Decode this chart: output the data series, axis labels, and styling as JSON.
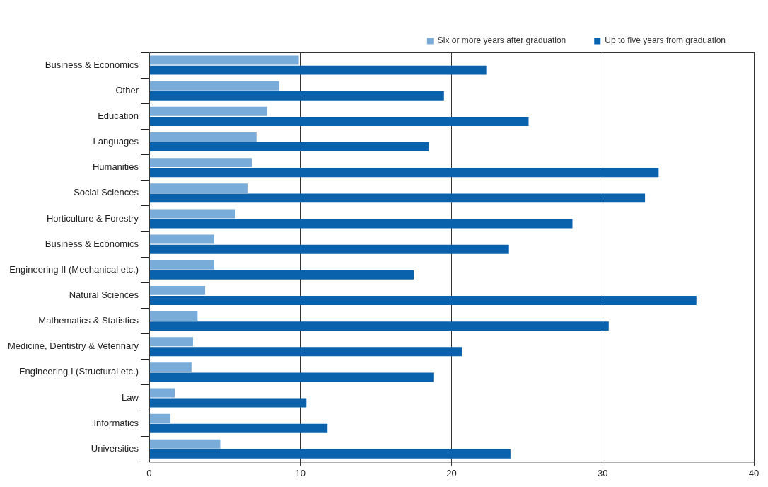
{
  "chart_data": {
    "type": "bar",
    "orientation": "horizontal",
    "categories": [
      "Business & Economics",
      "Other",
      "Education",
      "Languages",
      "Humanities",
      "Social Sciences",
      "Horticulture & Forestry",
      "Business & Economics",
      "Engineering II (Mechanical etc.)",
      "Natural Sciences",
      "Mathematics & Statistics",
      "Medicine, Dentistry & Veterinary",
      "Engineering I (Structural etc.)",
      "Law",
      "Informatics",
      "Universities"
    ],
    "series": [
      {
        "name": "Six or more years after graduation",
        "color": "#79acd9",
        "values": [
          9.9,
          8.6,
          7.8,
          7.1,
          6.8,
          6.5,
          5.7,
          4.3,
          4.3,
          3.7,
          3.2,
          2.9,
          2.8,
          1.7,
          1.4,
          4.7
        ]
      },
      {
        "name": "Up to five years from graduation",
        "color": "#0a62ad",
        "values": [
          22.3,
          19.5,
          25.1,
          18.5,
          33.7,
          32.8,
          28.0,
          23.8,
          17.5,
          36.2,
          30.4,
          20.7,
          18.8,
          10.4,
          11.8,
          23.9
        ]
      }
    ],
    "xlim": [
      0,
      40
    ],
    "xticks": [
      0,
      10,
      20,
      30,
      40
    ],
    "grid": "x",
    "legend": "top right"
  }
}
